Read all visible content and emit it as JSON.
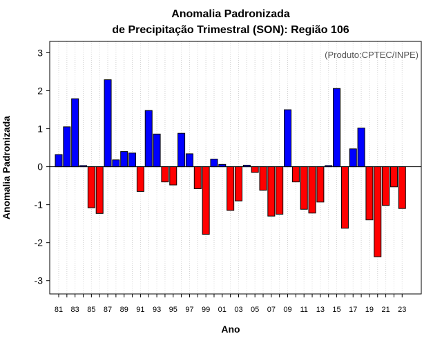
{
  "chart_data": {
    "type": "bar",
    "title": "Anomalia Padronizada",
    "subtitle": "de Precipitação Trimestral (SON): Região 106",
    "xlabel": "Ano",
    "ylabel": "Anomalia Padronizada",
    "annotation": "(Produto:CPTEC/INPE)",
    "ylim": [
      -3.35,
      3.3
    ],
    "yticks": [
      -3,
      -2,
      -1,
      0,
      1,
      2,
      3
    ],
    "ytick_labels": [
      "-3",
      "-2",
      "-1",
      "0",
      "1",
      "2",
      "3"
    ],
    "grid": "vertical dotted",
    "positive_color": "#0000ff",
    "negative_color": "#ff0000",
    "categories": [
      "81",
      "82",
      "83",
      "84",
      "85",
      "86",
      "87",
      "88",
      "89",
      "90",
      "91",
      "92",
      "93",
      "94",
      "95",
      "96",
      "97",
      "98",
      "99",
      "00",
      "01",
      "02",
      "03",
      "04",
      "05",
      "06",
      "07",
      "08",
      "09",
      "10",
      "11",
      "12",
      "13",
      "14",
      "15",
      "16",
      "17",
      "18",
      "19",
      "20",
      "21",
      "22",
      "23"
    ],
    "xtick_labels": [
      "81",
      "83",
      "85",
      "87",
      "89",
      "91",
      "93",
      "95",
      "97",
      "99",
      "01",
      "03",
      "05",
      "07",
      "09",
      "11",
      "13",
      "15",
      "17",
      "19",
      "21",
      "23"
    ],
    "values": [
      0.32,
      1.05,
      1.79,
      0.03,
      -1.08,
      -1.23,
      2.29,
      0.18,
      0.4,
      0.36,
      -0.65,
      1.48,
      0.86,
      -0.4,
      -0.48,
      0.88,
      0.34,
      -0.58,
      -1.78,
      0.2,
      0.06,
      -1.15,
      -0.9,
      0.04,
      -0.15,
      -0.62,
      -1.3,
      -1.25,
      1.5,
      -0.4,
      -1.12,
      -1.22,
      -0.93,
      0.03,
      2.06,
      -1.62,
      0.47,
      1.02,
      -1.4,
      -2.37,
      -1.02,
      -0.53,
      -1.1
    ]
  }
}
